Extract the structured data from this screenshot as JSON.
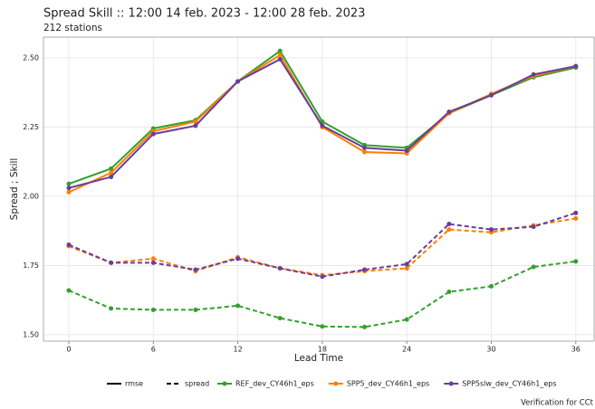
{
  "chart_data": {
    "type": "line",
    "title": "Spread Skill :: 12:00 14 feb. 2023 - 12:00 28 feb. 2023",
    "subtitle": "212 stations",
    "x_label": "Lead Time",
    "y_label": "Spread ; Skill",
    "caption": "Verification for CCt",
    "x": [
      0,
      3,
      6,
      9,
      12,
      15,
      18,
      21,
      24,
      27,
      30,
      33,
      36
    ],
    "xlim": [
      -1.8,
      37.3
    ],
    "xticks": [
      0,
      6,
      12,
      18,
      24,
      30,
      36
    ],
    "ylim": [
      1.477,
      2.575
    ],
    "yticks": [
      {
        "value": 1.5,
        "label": "1.50"
      },
      {
        "value": 1.75,
        "label": "1.75"
      },
      {
        "value": 2.0,
        "label": "2.00"
      },
      {
        "value": 2.25,
        "label": "2.25"
      },
      {
        "value": 2.5,
        "label": "2.50"
      }
    ],
    "grid": true,
    "linetypes": [
      {
        "name": "rmse",
        "dash": "solid"
      },
      {
        "name": "spread",
        "dash": "dashed"
      }
    ],
    "series": [
      {
        "name": "REF_dev_CY46h1_eps",
        "color": "#33a02c",
        "rmse": [
          2.045,
          2.1,
          2.245,
          2.275,
          2.415,
          2.525,
          2.27,
          2.185,
          2.175,
          2.3,
          2.365,
          2.43,
          2.465
        ],
        "spread": [
          1.66,
          1.595,
          1.59,
          1.59,
          1.605,
          1.56,
          1.53,
          1.528,
          1.555,
          1.655,
          1.675,
          1.745,
          1.765
        ]
      },
      {
        "name": "SPP5_dev_CY46h1_eps",
        "color": "#ff7f00",
        "rmse": [
          2.015,
          2.085,
          2.235,
          2.27,
          2.415,
          2.51,
          2.25,
          2.16,
          2.155,
          2.3,
          2.37,
          2.435,
          2.47
        ],
        "spread": [
          1.82,
          1.76,
          1.775,
          1.73,
          1.78,
          1.74,
          1.715,
          1.73,
          1.74,
          1.88,
          1.87,
          1.895,
          1.92
        ]
      },
      {
        "name": "SPP5slw_dev_CY46h1_eps",
        "color": "#6a3d9a",
        "rmse": [
          2.03,
          2.07,
          2.225,
          2.255,
          2.415,
          2.495,
          2.255,
          2.175,
          2.165,
          2.305,
          2.365,
          2.44,
          2.47
        ],
        "spread": [
          1.825,
          1.76,
          1.76,
          1.735,
          1.775,
          1.74,
          1.71,
          1.735,
          1.755,
          1.9,
          1.88,
          1.89,
          1.94
        ]
      }
    ]
  }
}
